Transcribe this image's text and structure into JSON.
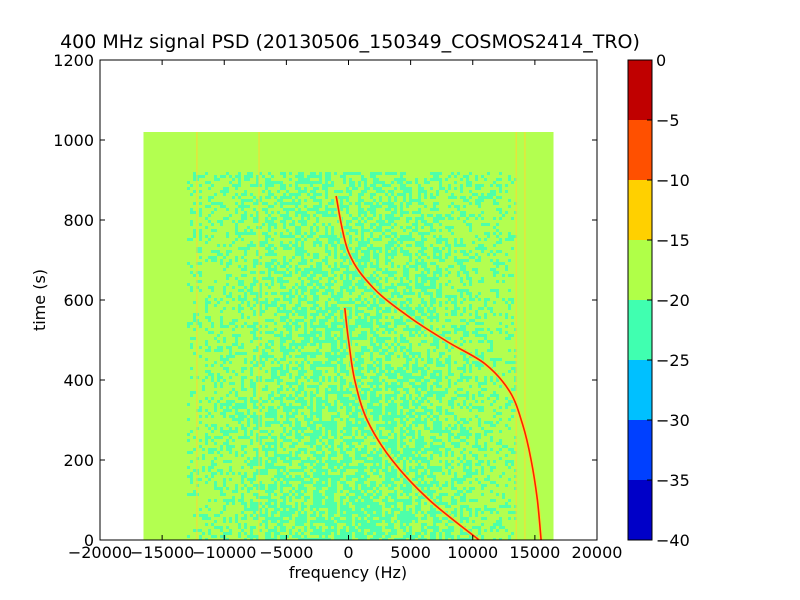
{
  "chart_data": {
    "type": "heatmap",
    "title": "400 MHz signal PSD (20130506_150349_COSMOS2414_TRO)",
    "xlabel": "frequency (Hz)",
    "ylabel": "time (s)",
    "xlim": [
      -20000,
      20000
    ],
    "ylim": [
      0,
      1200
    ],
    "xticks": [
      -20000,
      -15000,
      -10000,
      -5000,
      0,
      5000,
      10000,
      15000,
      20000
    ],
    "yticks": [
      0,
      200,
      400,
      600,
      800,
      1000,
      1200
    ],
    "data_extent": {
      "x": [
        -16500,
        16500
      ],
      "y": [
        0,
        1020
      ]
    },
    "background_level_range": [
      -20,
      -15
    ],
    "noise_floor_level_range": [
      -25,
      -20
    ],
    "carrier_traces": [
      {
        "points": [
          [
            -1000,
            860
          ],
          [
            0,
            720
          ],
          [
            2000,
            630
          ],
          [
            5000,
            555
          ],
          [
            8000,
            495
          ],
          [
            11000,
            440
          ],
          [
            13000,
            370
          ],
          [
            14000,
            290
          ],
          [
            14700,
            200
          ],
          [
            15200,
            100
          ],
          [
            15500,
            0
          ]
        ]
      },
      {
        "points": [
          [
            -300,
            580
          ],
          [
            0,
            500
          ],
          [
            500,
            400
          ],
          [
            1500,
            300
          ],
          [
            3500,
            200
          ],
          [
            6500,
            100
          ],
          [
            10500,
            0
          ]
        ]
      }
    ],
    "colorbar": {
      "levels": [
        -40,
        -35,
        -30,
        -25,
        -20,
        -15,
        -10,
        -5,
        0
      ],
      "ticks": [
        -40,
        -35,
        -30,
        -25,
        -20,
        -15,
        -10,
        -5,
        0
      ],
      "colors": [
        "#0000c8",
        "#0040ff",
        "#00c0ff",
        "#40ffb0",
        "#b0ff48",
        "#ffd000",
        "#ff5000",
        "#c00000"
      ]
    },
    "colors": {
      "background": "#b3ff50",
      "noise": "#4dffaa",
      "line": "#ff2000",
      "faint_line": "#ffd830"
    }
  }
}
